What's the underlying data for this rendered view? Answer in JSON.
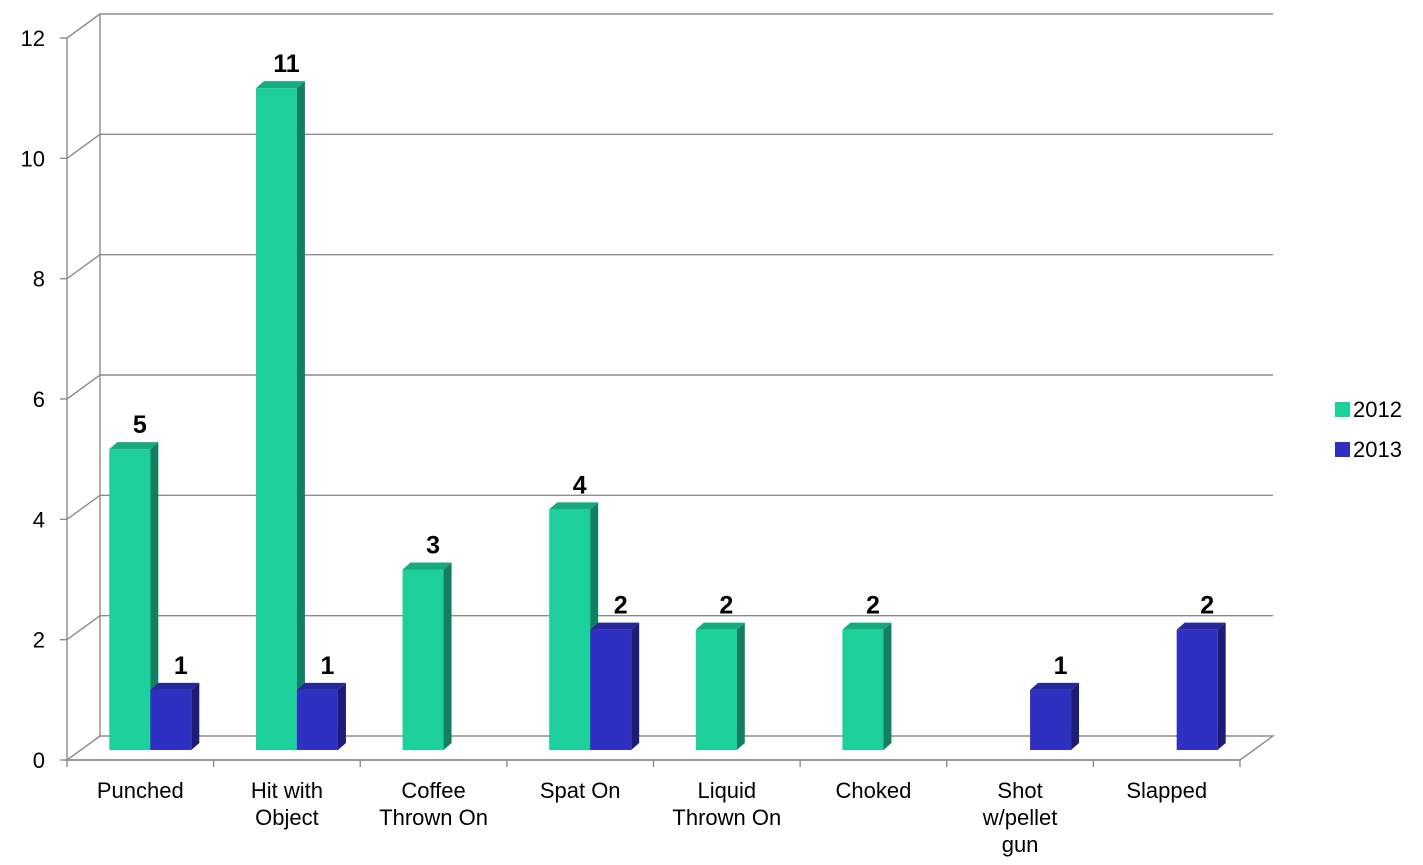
{
  "chart_data": {
    "type": "bar",
    "style": "3d-clustered-column",
    "categories": [
      [
        "Punched"
      ],
      [
        "Hit with",
        "Object"
      ],
      [
        "Coffee",
        "Thrown On"
      ],
      [
        "Spat On"
      ],
      [
        "Liquid",
        "Thrown On"
      ],
      [
        "Choked"
      ],
      [
        "Shot",
        "w/pellet",
        "gun"
      ],
      [
        "Slapped"
      ]
    ],
    "series": [
      {
        "name": "2012",
        "color": "#1dcf9b",
        "values": [
          5,
          11,
          3,
          4,
          2,
          2,
          null,
          null
        ]
      },
      {
        "name": "2013",
        "color": "#2f2fc2",
        "values": [
          1,
          1,
          null,
          2,
          null,
          null,
          1,
          2
        ]
      }
    ],
    "y_ticks": [
      "0",
      "2",
      "4",
      "6",
      "8",
      "10",
      "12"
    ],
    "ylim": [
      0,
      12
    ],
    "grid": true,
    "legend_position": "right",
    "data_labels": true
  }
}
